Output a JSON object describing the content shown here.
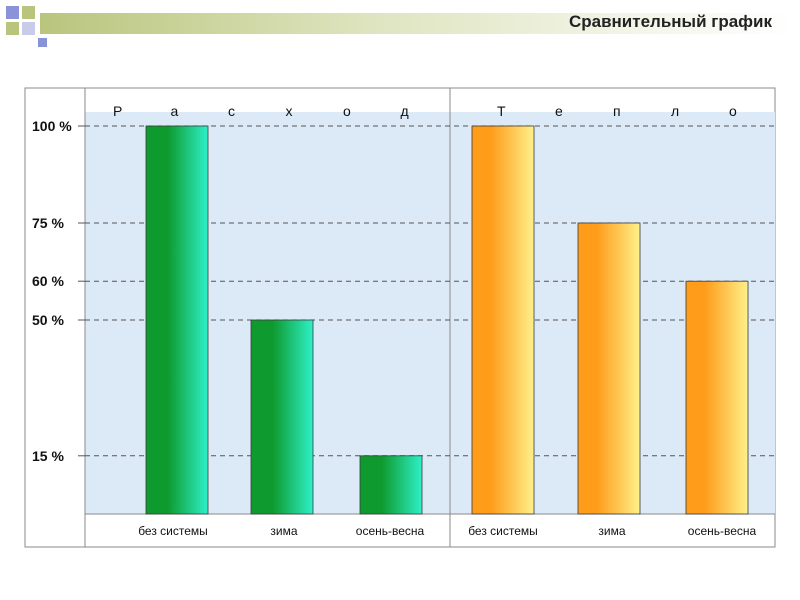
{
  "slide_title": "Сравнительный график",
  "colors": {
    "plot_bg": "#dce9f6",
    "rashod_dark": "#0e9a2e",
    "rashod_light": "#2ef0c8",
    "teplo_dark": "#ff9c1a",
    "teplo_light": "#fff08a",
    "header_accent": "#b9c57d",
    "corner_square": "#8a93d8"
  },
  "chart_data": {
    "type": "bar",
    "title": "",
    "ylim": [
      0,
      100
    ],
    "y_ticks": [
      100,
      75,
      60,
      50,
      15
    ],
    "y_tick_labels": [
      "100 %",
      "75 %",
      "60 %",
      "50 %",
      "15 %"
    ],
    "grid": true,
    "groups": [
      {
        "name": "Р а с х о д",
        "letters": [
          "Р",
          "а",
          "с",
          "х",
          "о",
          "д"
        ],
        "categories": [
          "без системы",
          "зима",
          "осень-весна"
        ],
        "values": [
          100,
          50,
          15
        ]
      },
      {
        "name": "Т е п л о",
        "letters": [
          "Т",
          "е",
          "п",
          "л",
          "о"
        ],
        "categories": [
          "без системы",
          "зима",
          "осень-весна"
        ],
        "values": [
          100,
          75,
          60
        ]
      }
    ]
  }
}
